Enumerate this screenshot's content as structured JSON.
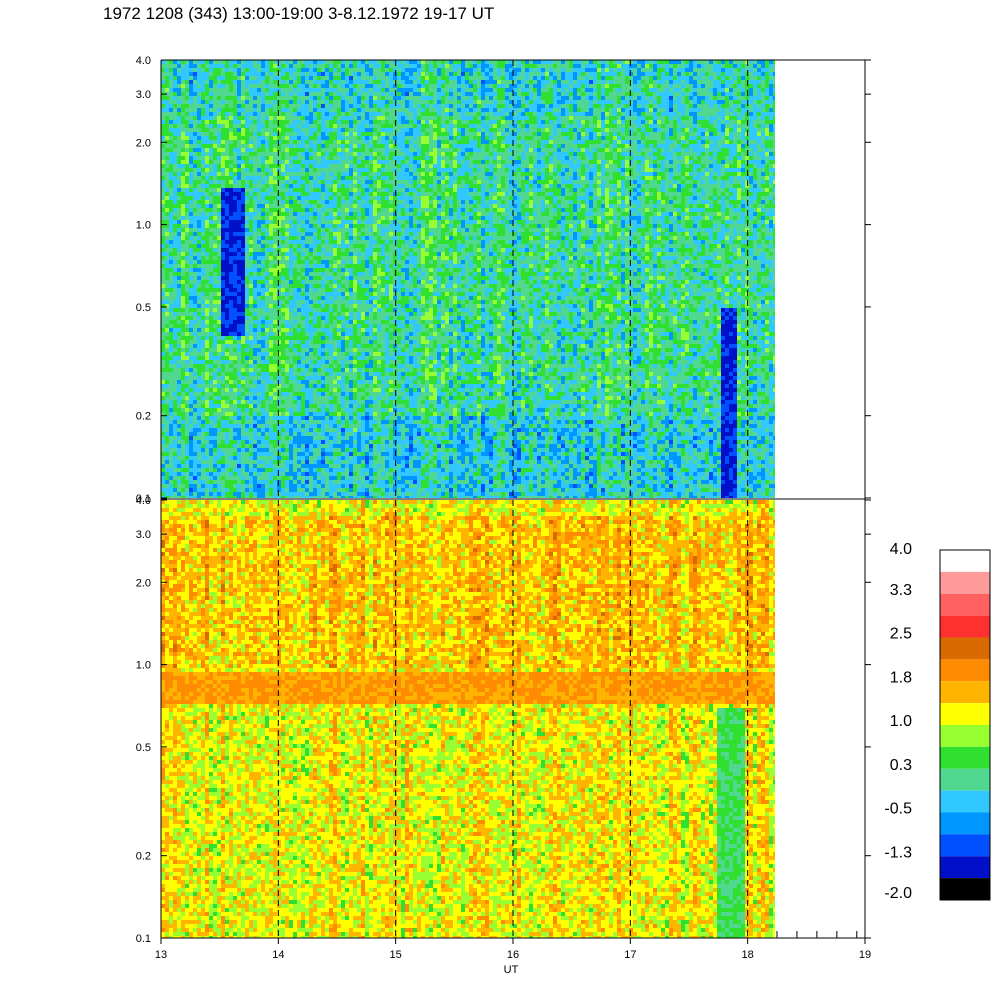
{
  "title": "1972 1208 (343) 13:00-19:00 3-8.12.1972  19-17 UT",
  "chart_data": {
    "type": "heatmap",
    "xlabel": "UT",
    "x_range": [
      13,
      19
    ],
    "x_ticks": [
      "13",
      "14",
      "15",
      "16",
      "17",
      "18",
      "19"
    ],
    "data_end_ut": 18.25,
    "dashed_lines_ut": [
      14,
      15,
      16,
      17,
      18
    ],
    "y_scale": "log",
    "y_range": [
      0.1,
      4.0
    ],
    "panels": [
      {
        "id": "upper",
        "y_ticks": [
          {
            "value": 4.0,
            "label": "4.0"
          },
          {
            "value": 3.0,
            "label": "3.0"
          },
          {
            "value": 2.0,
            "label": "2.0"
          },
          {
            "value": 1.0,
            "label": "1.0"
          },
          {
            "value": 0.5,
            "label": "0.5"
          },
          {
            "value": 0.2,
            "label": "0.2"
          },
          {
            "value": 0.1,
            "label": "0.1"
          }
        ],
        "dominant_levels": [
          "0.3",
          "-0.5",
          "1.0"
        ],
        "features": [
          {
            "ut": [
              13.5,
              13.7
            ],
            "freq": [
              0.4,
              1.4
            ],
            "level": "-1.3",
            "desc": "dark blue patch"
          },
          {
            "ut": [
              17.75,
              17.9
            ],
            "freq": [
              0.1,
              0.5
            ],
            "level": "-1.3",
            "desc": "dark blue patch"
          }
        ]
      },
      {
        "id": "lower",
        "y_ticks": [
          {
            "value": 4.0,
            "label": "4.0"
          },
          {
            "value": 3.0,
            "label": "3.0"
          },
          {
            "value": 2.0,
            "label": "2.0"
          },
          {
            "value": 1.0,
            "label": "1.0"
          },
          {
            "value": 0.5,
            "label": "0.5"
          },
          {
            "value": 0.2,
            "label": "0.2"
          },
          {
            "value": 0.1,
            "label": "0.1"
          }
        ],
        "dominant_levels": [
          "1.8",
          "1.0",
          "0.3"
        ],
        "features": [
          {
            "ut": [
              13,
              18.25
            ],
            "freq": [
              0.72,
              0.95
            ],
            "level": "1.8",
            "desc": "orange band"
          },
          {
            "ut": [
              17.72,
              17.95
            ],
            "freq": [
              0.1,
              0.7
            ],
            "level": "0.3",
            "desc": "green gap"
          }
        ]
      }
    ],
    "colorbar": {
      "labels": [
        "4.0",
        "3.3",
        "2.5",
        "1.8",
        "1.0",
        "0.3",
        "-0.5",
        "-1.3",
        "-2.0"
      ],
      "colors_top_to_bottom": [
        "#ffffff",
        "#ff9a9a",
        "#ff6060",
        "#ff3030",
        "#d96a00",
        "#ff8c00",
        "#ffb400",
        "#ffff00",
        "#98ff30",
        "#30e030",
        "#50d890",
        "#30c8ff",
        "#0096ff",
        "#0050ff",
        "#0010c8",
        "#000000"
      ]
    }
  }
}
